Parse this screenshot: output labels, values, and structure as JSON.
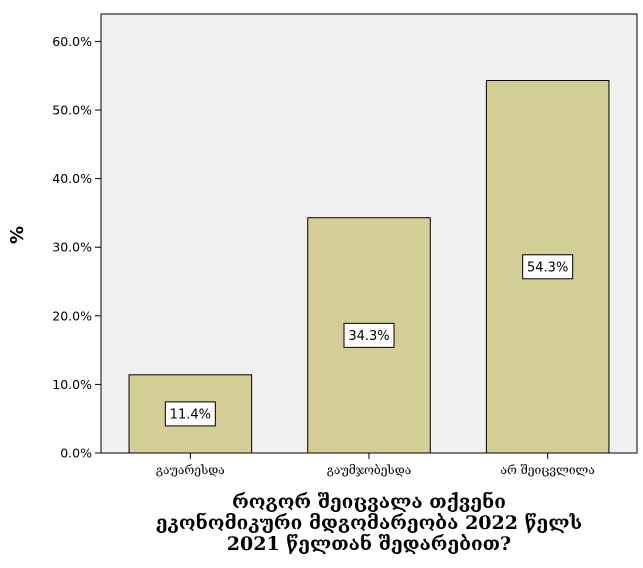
{
  "colors": {
    "plot_background": "#f0f0f0",
    "bar_fill": "#d3ce96",
    "bar_stroke": "#000000",
    "label_box_fill": "#ffffff"
  },
  "chart_data": {
    "type": "bar",
    "categories": [
      "გაუარესდა",
      "გაუმჯობესდა",
      "არ შეიცვლილა"
    ],
    "values": [
      11.4,
      34.3,
      54.3
    ],
    "data_labels": [
      "11.4%",
      "34.3%",
      "54.3%"
    ],
    "ylabel": "%",
    "xlabel": [
      "როგორ შეიცვალა თქვენი",
      "ეკონომიკური მდგომარეობა 2022 წელს",
      "2021 წელთან შედარებით?"
    ],
    "ylim": [
      0,
      64
    ],
    "yticks": [
      0,
      10,
      20,
      30,
      40,
      50,
      60
    ],
    "ytick_labels": [
      "0.0%",
      "10.0%",
      "20.0%",
      "30.0%",
      "40.0%",
      "50.0%",
      "60.0%"
    ],
    "grid": false,
    "legend": "none"
  }
}
